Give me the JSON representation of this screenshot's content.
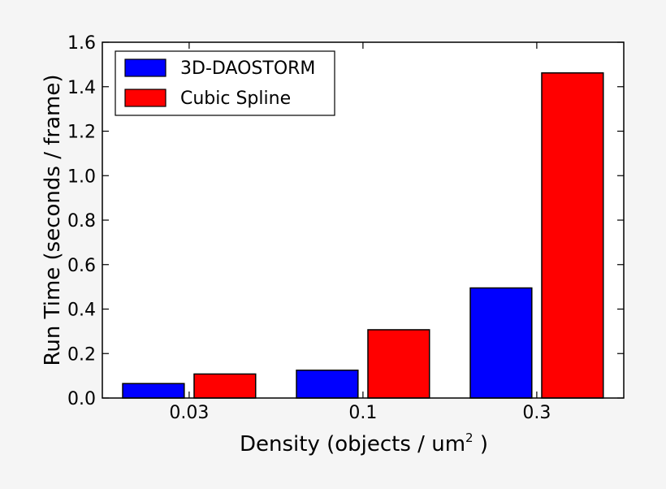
{
  "chart_data": {
    "type": "bar",
    "categories": [
      "0.03",
      "0.1",
      "0.3"
    ],
    "series": [
      {
        "name": "3D-DAOSTORM",
        "values": [
          0.065,
          0.125,
          0.495
        ],
        "color": "#0000ff"
      },
      {
        "name": "Cubic Spline",
        "values": [
          0.108,
          0.307,
          1.462
        ],
        "color": "#ff0000"
      }
    ],
    "xlabel": "Density (objects / um",
    "xlabel_superscript": "2",
    "xlabel_suffix": " )",
    "ylabel": "Run Time (seconds / frame)",
    "ylim": [
      0,
      1.6
    ],
    "yticks": [
      "0.0",
      "0.2",
      "0.4",
      "0.6",
      "0.8",
      "1.0",
      "1.2",
      "1.4",
      "1.6"
    ],
    "grid": false,
    "legend_position": "top-left"
  }
}
